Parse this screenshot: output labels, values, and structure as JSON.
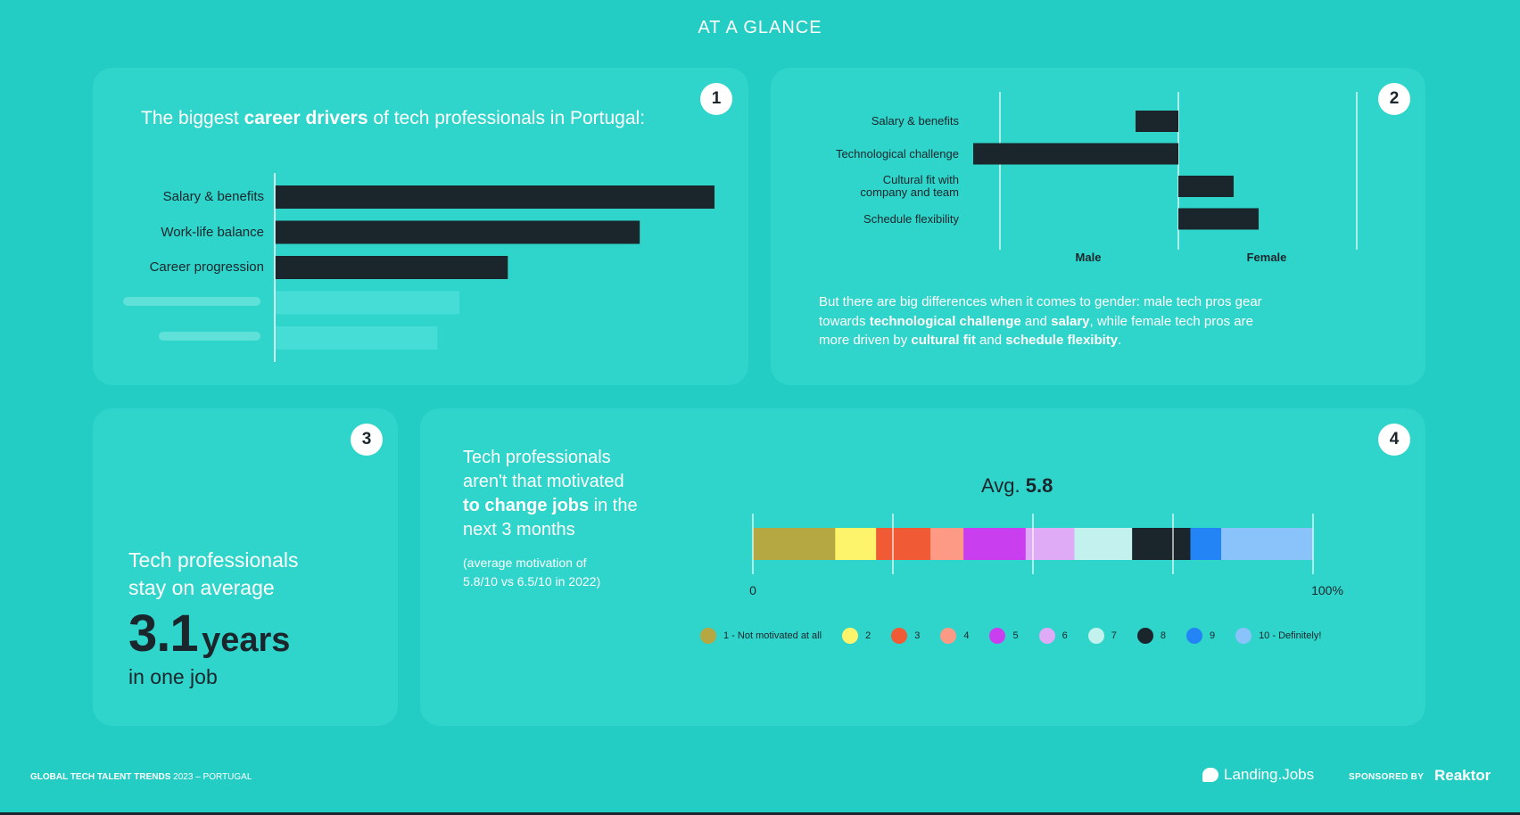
{
  "page_title": "AT A GLANCE",
  "card1": {
    "badge": "1",
    "heading_pre": "The biggest ",
    "heading_bold": "career drivers",
    "heading_post": " of tech professionals in Portugal:"
  },
  "card2": {
    "badge": "2",
    "text_1": "But there are big differences when it comes to gender: male tech pros gear towards ",
    "bold_1": "technological challenge",
    "text_2": " and ",
    "bold_2": "salary",
    "text_3": ", while female tech pros are more driven by ",
    "bold_3": "cultural fit",
    "text_4": " and ",
    "bold_4": "schedule flexibity",
    "text_5": "."
  },
  "card3": {
    "badge": "3",
    "line_1": "Tech professionals",
    "line_2": "stay on average",
    "big_number": "3.1",
    "big_unit": "years",
    "after": "in one job"
  },
  "card4": {
    "badge": "4",
    "heading_l1": "Tech professionals",
    "heading_l2": "aren't that motivated",
    "heading_bold": "to change jobs",
    "heading_l3_post": " in the",
    "heading_l4": "next 3 months",
    "sub_l1": "(average motivation of",
    "sub_l2": "5.8/10 vs 6.5/10 in 2022)",
    "avg_label": "Avg.",
    "avg_value": "5.8"
  },
  "footer": {
    "left_bold": "GLOBAL TECH TALENT TRENDS",
    "left_rest": " 2023 – PORTUGAL",
    "brand": "Landing.Jobs",
    "sponsored": "SPONSORED BY",
    "sponsor": "Reaktor"
  },
  "colors": {
    "background": "#23cdc4",
    "card": "#2fd4cb",
    "dark": "#1a262b",
    "ghost": "#45ddd5"
  },
  "chart_data": [
    {
      "type": "bar",
      "orientation": "horizontal",
      "categories": [
        "Salary & benefits",
        "Work-life balance",
        "Career progression"
      ],
      "values": [
        100,
        83,
        53
      ],
      "faded_values": [
        42,
        37
      ],
      "title": "",
      "xlabel": "",
      "ylabel": ""
    },
    {
      "type": "bar",
      "orientation": "diverging",
      "categories": [
        "Salary & benefits",
        "Technological challenge",
        "Cultural fit with company and team",
        "Schedule flexibility"
      ],
      "series": [
        {
          "name": "Male",
          "values": [
            24,
            115,
            0,
            0
          ]
        },
        {
          "name": "Female",
          "values": [
            0,
            0,
            31,
            45
          ]
        }
      ],
      "xlabel_left": "Male",
      "xlabel_right": "Female"
    },
    {
      "type": "bar",
      "orientation": "stacked-100",
      "x_tick_labels": [
        "0",
        "100%"
      ],
      "segments": [
        {
          "name": "1 - Not motivated at all",
          "value": 14.7,
          "color": "#b5a842"
        },
        {
          "name": "2",
          "value": 7.3,
          "color": "#fdf46b"
        },
        {
          "name": "3",
          "value": 9.7,
          "color": "#f05a35"
        },
        {
          "name": "4",
          "value": 5.9,
          "color": "#fc9a86"
        },
        {
          "name": "5",
          "value": 11.1,
          "color": "#c93ff0"
        },
        {
          "name": "6",
          "value": 8.7,
          "color": "#dfabf6"
        },
        {
          "name": "7",
          "value": 10.3,
          "color": "#c3f1ee"
        },
        {
          "name": "8",
          "value": 10.4,
          "color": "#1a262b"
        },
        {
          "name": "9",
          "value": 5.5,
          "color": "#2384f5"
        },
        {
          "name": "10 - Definitely!",
          "value": 16.4,
          "color": "#89c3fa"
        }
      ],
      "average": 5.8
    }
  ]
}
